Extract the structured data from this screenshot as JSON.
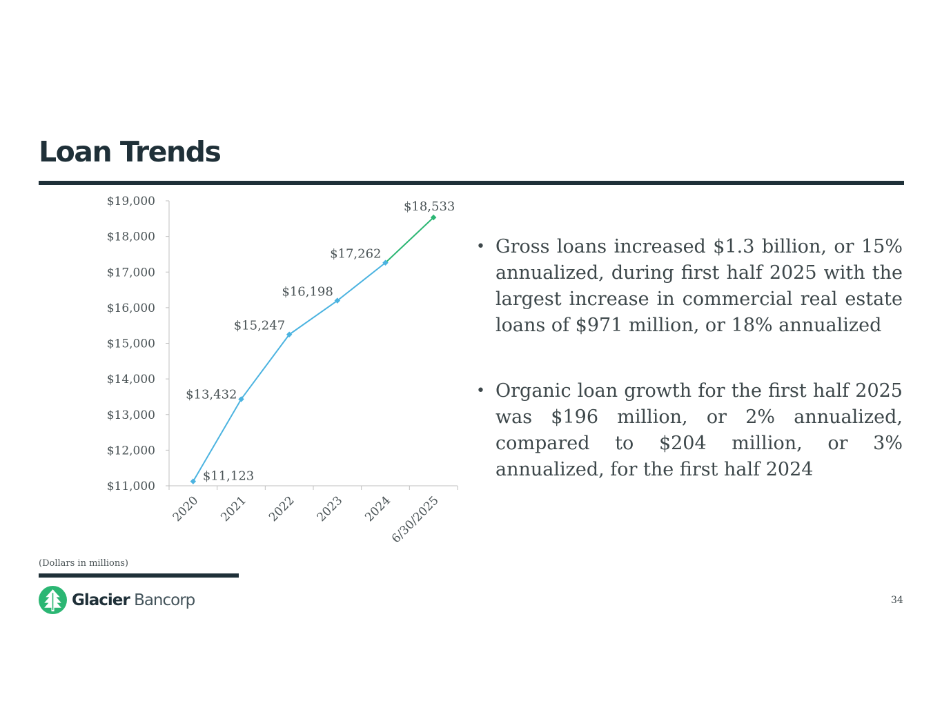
{
  "slide": {
    "title": "Loan Trends",
    "footnote": "(Dollars in millions)",
    "page_number": "34",
    "logo": {
      "name_bold": "Glacier",
      "name_light": "Bancorp",
      "icon": "pine-tree-icon"
    }
  },
  "bullets": [
    "Gross loans increased $1.3 billion, or 15% annualized, during first half 2025 with the largest increase in commercial real estate loans of $971 million, or 18% annualized",
    "Organic loan growth for the first half 2025 was $196 million, or 2% annualized, compared to $204 million, or 3% annualized, for the first half 2024"
  ],
  "colors": {
    "title": "#1f3038",
    "line_blue": "#4bb3e0",
    "line_green": "#2bb673",
    "axis": "#bfbfbf",
    "text": "#4a5356"
  },
  "chart_data": {
    "type": "line",
    "categories": [
      "2020",
      "2021",
      "2022",
      "2023",
      "2024",
      "6/30/2025"
    ],
    "values": [
      11123,
      13432,
      15247,
      16198,
      17262,
      18533
    ],
    "data_labels": [
      "$11,123",
      "$13,432",
      "$15,247",
      "$16,198",
      "$17,262",
      "$18,533"
    ],
    "y_ticks": [
      11000,
      12000,
      13000,
      14000,
      15000,
      16000,
      17000,
      18000,
      19000
    ],
    "y_tick_labels": [
      "$11,000",
      "$12,000",
      "$13,000",
      "$14,000",
      "$15,000",
      "$16,000",
      "$17,000",
      "$18,000",
      "$19,000"
    ],
    "ylim": [
      11000,
      19000
    ],
    "last_segment_color": "green",
    "grid": false,
    "legend": "none"
  }
}
